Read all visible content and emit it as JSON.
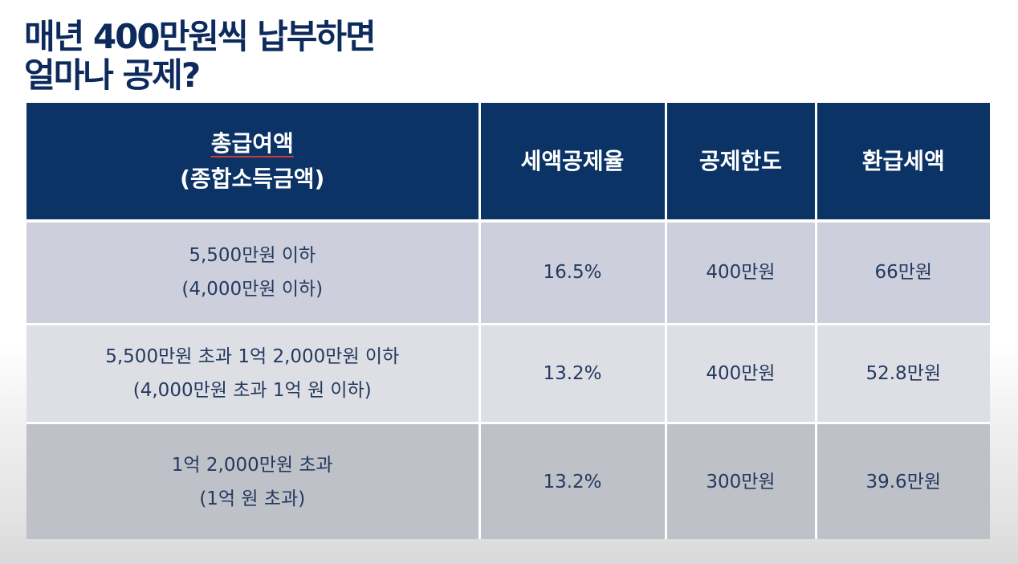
{
  "title": {
    "line1": "매년 400만원씩 납부하면",
    "line2": "얼마나 공제?"
  },
  "table": {
    "headers": {
      "income_main": "총급여액",
      "income_sub": "(종합소득금액)",
      "rate": "세액공제율",
      "limit": "공제한도",
      "refund": "환급세액"
    },
    "rows": [
      {
        "income_main": "5,500만원 이하",
        "income_sub": "(4,000만원 이하)",
        "rate": "16.5%",
        "limit": "400만원",
        "refund": "66만원"
      },
      {
        "income_main": "5,500만원 초과 1억 2,000만원 이하",
        "income_sub": "(4,000만원 초과 1억 원 이하)",
        "rate": "13.2%",
        "limit": "400만원",
        "refund": "52.8만원"
      },
      {
        "income_main": "1억 2,000만원 초과",
        "income_sub": "(1억 원 초과)",
        "rate": "13.2%",
        "limit": "300만원",
        "refund": "39.6만원"
      }
    ]
  },
  "colors": {
    "title": "#0d2a5c",
    "header_bg": "#0b3366",
    "header_text": "#ffffff",
    "row1_bg": "#cdd0dc",
    "row2_bg": "#dedfe5",
    "row3_bg": "#bfc1c8",
    "cell_text": "#23395f",
    "underline_accent": "#d23a3a"
  }
}
